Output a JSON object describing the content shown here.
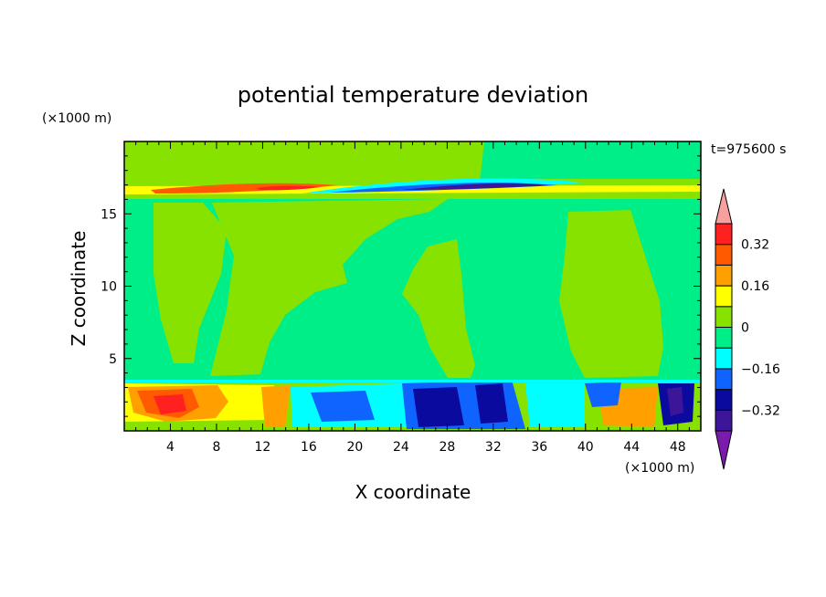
{
  "chart_data": {
    "type": "heatmap",
    "title": "potential temperature deviation",
    "xlabel": "X coordinate",
    "ylabel": "Z coordinate",
    "x_unit": "(×1000 m)",
    "y_unit": "(×1000 m)",
    "time_label": "t=975600 s",
    "xlim": [
      0,
      50
    ],
    "ylim": [
      0,
      20
    ],
    "x_ticks": [
      4,
      8,
      12,
      16,
      20,
      24,
      28,
      32,
      36,
      40,
      44,
      48
    ],
    "y_ticks": [
      5,
      10,
      15
    ],
    "grid": false,
    "legend": "colorbar-right",
    "colorbar": {
      "levels": [
        -0.4,
        -0.32,
        -0.24,
        -0.16,
        -0.08,
        0,
        0.08,
        0.16,
        0.24,
        0.32,
        0.4
      ],
      "tick_labels": [
        "0.32",
        "0.16",
        "0",
        "−0.16",
        "−0.32"
      ],
      "tick_values": [
        0.32,
        0.16,
        0,
        -0.16,
        -0.32
      ],
      "colors": [
        "#7a1aae",
        "#3c1598",
        "#0a0a9e",
        "#0f64ff",
        "#00ffff",
        "#00ee88",
        "#88e200",
        "#ffff00",
        "#ffa000",
        "#ff5a00",
        "#ff2020",
        "#f8a0a0"
      ]
    },
    "regions": [
      {
        "name": "background",
        "value": 0.04,
        "x": [
          0,
          50
        ],
        "y": [
          0,
          20
        ]
      },
      {
        "name": "upper-left-band",
        "value": 0.04,
        "x": [
          0,
          31
        ],
        "y": [
          17,
          20
        ]
      },
      {
        "name": "upper-band",
        "value": 0.04,
        "x": [
          0,
          50
        ],
        "y": [
          16.2,
          17.4
        ]
      },
      {
        "name": "warm-layer",
        "value": 0.18,
        "x": [
          0,
          50
        ],
        "y": [
          16.5,
          17
        ]
      },
      {
        "name": "hot-streak-west",
        "value": 0.3,
        "x": [
          2,
          18
        ],
        "y": [
          16.5,
          16.9
        ]
      },
      {
        "name": "cold-streak-east",
        "value": -0.28,
        "x": [
          18,
          38
        ],
        "y": [
          16.5,
          16.9
        ]
      },
      {
        "name": "plume-west",
        "value": 0.04,
        "x": [
          2.5,
          18
        ],
        "y": [
          5.5,
          16
        ]
      },
      {
        "name": "plume-center",
        "value": 0.04,
        "x": [
          12,
          25
        ],
        "y": [
          3.5,
          16
        ]
      },
      {
        "name": "plume-diagonal",
        "value": 0.04,
        "x": [
          24,
          31
        ],
        "y": [
          3.5,
          12
        ]
      },
      {
        "name": "plume-east",
        "value": 0.04,
        "x": [
          38,
          48
        ],
        "y": [
          4,
          15
        ]
      },
      {
        "name": "hot-surface-west",
        "value": 0.3,
        "x": [
          0,
          6
        ],
        "y": [
          0.3,
          3
        ]
      },
      {
        "name": "cold-surface-center",
        "value": -0.32,
        "x": [
          24,
          31
        ],
        "y": [
          0.4,
          3
        ]
      },
      {
        "name": "cold-surface-east",
        "value": -0.26,
        "x": [
          40,
          50
        ],
        "y": [
          0.5,
          3
        ]
      }
    ]
  }
}
